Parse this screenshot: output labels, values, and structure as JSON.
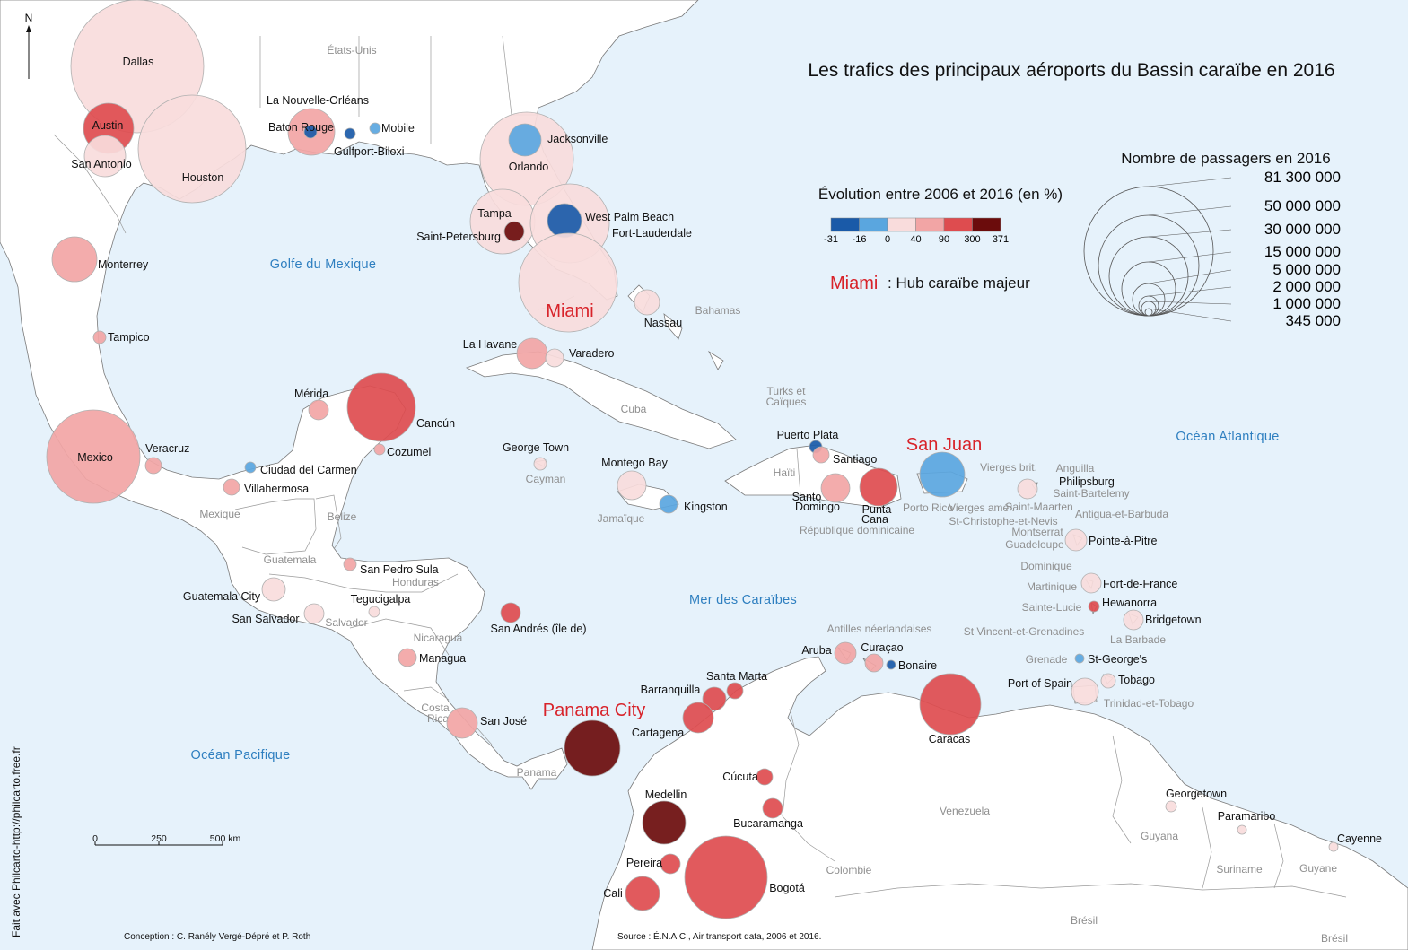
{
  "title": "Les trafics des principaux aéroports du Bassin caraïbe en 2016",
  "north": "N",
  "evolution_legend": {
    "title": "Évolution entre 2006 et 2016 (en %)",
    "ticks": [
      "-31",
      "-16",
      "0",
      "40",
      "90",
      "300",
      "371"
    ],
    "colors": [
      "#1a5aa8",
      "#5aa6df",
      "#f9dcdc",
      "#f2a5a5",
      "#de4c4f",
      "#6b0c0c"
    ]
  },
  "hub_legend": {
    "example": "Miami",
    "label": ": Hub caraïbe majeur"
  },
  "size_legend": {
    "title": "Nombre de passagers en 2016",
    "values": [
      "81 300 000",
      "50 000 000",
      "30 000 000",
      "15 000 000",
      "5 000 000",
      "2 000 000",
      "1 000 000",
      "345 000"
    ]
  },
  "scale_bar": {
    "labels": [
      "0",
      "250",
      "500 km"
    ]
  },
  "credits": {
    "vertical": "Fait avec Philcarto-http://philcarto.free.fr",
    "conception": "Conception : C. Ranély Vergé-Dépré et P. Roth",
    "source": "Source : É.N.A.C., Air transport data, 2006 et 2016."
  },
  "seas": [
    "Golfe du Mexique",
    "Océan Atlantique",
    "Mer des Caraïbes",
    "Océan Pacifique"
  ],
  "countries": [
    "États-Unis",
    "Bahamas",
    "Turks et",
    "Caïques",
    "Cuba",
    "Cayman",
    "Haïti",
    "Jamaïque",
    "République dominicaine",
    "Porto Rico",
    "Vierges brit.",
    "Vierges amér.",
    "Anguilla",
    "Saint-Bartelemy",
    "Saint-Maarten",
    "St-Christophe-et-Nevis",
    "Antigua-et-Barbuda",
    "Montserrat",
    "Guadeloupe",
    "Dominique",
    "Martinique",
    "Sainte-Lucie",
    "St Vincent-et-Grenadines",
    "Grenade",
    "La Barbade",
    "Trinidad-et-Tobago",
    "Antilles néerlandaises",
    "Mexique",
    "Belize",
    "Guatemala",
    "Honduras",
    "Salvador",
    "Nicaragua",
    "Costa",
    "Rica",
    "Panama",
    "Colombie",
    "Venezuela",
    "Guyana",
    "Suriname",
    "Guyane",
    "Brésil",
    "Brésil"
  ],
  "airports": [
    {
      "name": "Dallas",
      "color": "#f9dcdc"
    },
    {
      "name": "Houston",
      "color": "#f9dcdc"
    },
    {
      "name": "Austin",
      "color": "#de4c4f"
    },
    {
      "name": "San Antonio",
      "color": "#f9dcdc"
    },
    {
      "name": "Monterrey",
      "color": "#f2a5a5"
    },
    {
      "name": "Tampico",
      "color": "#f2a5a5"
    },
    {
      "name": "Mexico",
      "color": "#f2a5a5"
    },
    {
      "name": "Veracruz",
      "color": "#f2a5a5"
    },
    {
      "name": "Villahermosa",
      "color": "#f2a5a5"
    },
    {
      "name": "Ciudad del Carmen",
      "color": "#5aa6df"
    },
    {
      "name": "Mérida",
      "color": "#f2a5a5"
    },
    {
      "name": "Cancún",
      "color": "#de4c4f"
    },
    {
      "name": "Cozumel",
      "color": "#f2a5a5"
    },
    {
      "name": "La Nouvelle-Orléans",
      "color": "#f2a5a5"
    },
    {
      "name": "Baton Rouge",
      "color": "#1a5aa8"
    },
    {
      "name": "Gulfport-Biloxi",
      "color": "#1a5aa8"
    },
    {
      "name": "Mobile",
      "color": "#5aa6df"
    },
    {
      "name": "Orlando",
      "color": "#f9dcdc"
    },
    {
      "name": "Jacksonville",
      "color": "#5aa6df"
    },
    {
      "name": "Tampa",
      "color": "#f9dcdc"
    },
    {
      "name": "Saint-Petersburg",
      "color": "#6b0c0c"
    },
    {
      "name": "Fort-Lauderdale",
      "color": "#f9dcdc"
    },
    {
      "name": "West Palm Beach",
      "color": "#1a5aa8"
    },
    {
      "name": "Miami",
      "color": "#f9dcdc"
    },
    {
      "name": "Nassau",
      "color": "#f9dcdc"
    },
    {
      "name": "La Havane",
      "color": "#f2a5a5"
    },
    {
      "name": "Varadero",
      "color": "#f9dcdc"
    },
    {
      "name": "George Town",
      "color": "#f9dcdc"
    },
    {
      "name": "Montego Bay",
      "color": "#f9dcdc"
    },
    {
      "name": "Kingston",
      "color": "#5aa6df"
    },
    {
      "name": "Puerto Plata",
      "color": "#1a5aa8"
    },
    {
      "name": "Santiago",
      "color": "#f2a5a5"
    },
    {
      "name": "Santo Domingo",
      "color": "#f2a5a5"
    },
    {
      "name": "Punta Cana",
      "color": "#de4c4f"
    },
    {
      "name": "San Juan",
      "color": "#5aa6df"
    },
    {
      "name": "Philipsburg",
      "color": "#f9dcdc"
    },
    {
      "name": "Pointe-à-Pitre",
      "color": "#f9dcdc"
    },
    {
      "name": "Fort-de-France",
      "color": "#f9dcdc"
    },
    {
      "name": "Hewanorra",
      "color": "#de4c4f"
    },
    {
      "name": "Bridgetown",
      "color": "#f9dcdc"
    },
    {
      "name": "St-George's",
      "color": "#5aa6df"
    },
    {
      "name": "Tobago",
      "color": "#f9dcdc"
    },
    {
      "name": "Port of Spain",
      "color": "#f9dcdc"
    },
    {
      "name": "Caracas",
      "color": "#de4c4f"
    },
    {
      "name": "Aruba",
      "color": "#f2a5a5"
    },
    {
      "name": "Curaçao",
      "color": "#f2a5a5"
    },
    {
      "name": "Bonaire",
      "color": "#1a5aa8"
    },
    {
      "name": "Guatemala City",
      "color": "#f9dcdc"
    },
    {
      "name": "San Pedro Sula",
      "color": "#f2a5a5"
    },
    {
      "name": "Tegucigalpa",
      "color": "#f9dcdc"
    },
    {
      "name": "San Salvador",
      "color": "#f9dcdc"
    },
    {
      "name": "Managua",
      "color": "#f2a5a5"
    },
    {
      "name": "San Andrés (île de)",
      "color": "#de4c4f"
    },
    {
      "name": "San José",
      "color": "#f2a5a5"
    },
    {
      "name": "Panama City",
      "color": "#6b0c0c"
    },
    {
      "name": "Barranquilla",
      "color": "#de4c4f"
    },
    {
      "name": "Santa Marta",
      "color": "#de4c4f"
    },
    {
      "name": "Cartagena",
      "color": "#de4c4f"
    },
    {
      "name": "Cúcuta",
      "color": "#de4c4f"
    },
    {
      "name": "Bucaramanga",
      "color": "#de4c4f"
    },
    {
      "name": "Medellin",
      "color": "#6b0c0c"
    },
    {
      "name": "Pereira",
      "color": "#de4c4f"
    },
    {
      "name": "Cali",
      "color": "#de4c4f"
    },
    {
      "name": "Bogotá",
      "color": "#de4c4f"
    },
    {
      "name": "Georgetown",
      "color": "#f9dcdc"
    },
    {
      "name": "Paramaribo",
      "color": "#f9dcdc"
    },
    {
      "name": "Cayenne",
      "color": "#f9dcdc"
    }
  ]
}
